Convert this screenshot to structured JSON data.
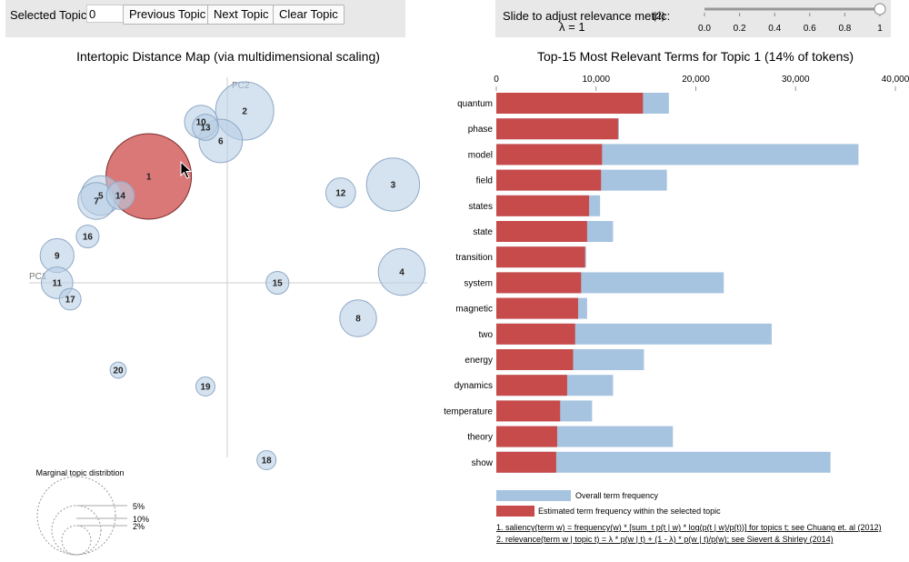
{
  "controls": {
    "selected_topic_label": "Selected Topic:",
    "selected_topic_value": "0",
    "prev_label": "Previous Topic",
    "next_label": "Next Topic",
    "clear_label": "Clear Topic",
    "slider_label": "Slide to adjust relevance metric:",
    "slider_footnote": "(2)",
    "lambda_text": "λ = 1",
    "slider_ticks": [
      "0.0",
      "0.2",
      "0.4",
      "0.6",
      "0.8",
      "1"
    ],
    "lambda_value": 1
  },
  "colors": {
    "overall": "#a6c4e0",
    "estimated": "#c84b4b",
    "circle_fill": "#b9cee4",
    "selected_fill": "#d45f5f"
  },
  "chart_data": [
    {
      "type": "scatter",
      "title": "Intertopic Distance Map (via multidimensional scaling)",
      "xlabel": "PC1",
      "ylabel": "PC2",
      "selected_topic": 1,
      "points": [
        {
          "topic": "1",
          "x": -0.36,
          "y": 0.39,
          "size": 14
        },
        {
          "topic": "2",
          "x": 0.08,
          "y": 0.63,
          "size": 6.5
        },
        {
          "topic": "3",
          "x": 0.76,
          "y": 0.36,
          "size": 5.4
        },
        {
          "topic": "4",
          "x": 0.8,
          "y": 0.04,
          "size": 4.2
        },
        {
          "topic": "5",
          "x": -0.58,
          "y": 0.32,
          "size": 3.0
        },
        {
          "topic": "6",
          "x": -0.03,
          "y": 0.52,
          "size": 3.6
        },
        {
          "topic": "7",
          "x": -0.6,
          "y": 0.3,
          "size": 2.6
        },
        {
          "topic": "8",
          "x": 0.6,
          "y": -0.13,
          "size": 2.6
        },
        {
          "topic": "9",
          "x": -0.78,
          "y": 0.1,
          "size": 2.2
        },
        {
          "topic": "10",
          "x": -0.12,
          "y": 0.59,
          "size": 2.1
        },
        {
          "topic": "11",
          "x": -0.78,
          "y": 0.0,
          "size": 1.9
        },
        {
          "topic": "13",
          "x": -0.1,
          "y": 0.57,
          "size": 1.3
        },
        {
          "topic": "12",
          "x": 0.52,
          "y": 0.33,
          "size": 1.7
        },
        {
          "topic": "14",
          "x": -0.49,
          "y": 0.32,
          "size": 1.5
        },
        {
          "topic": "15",
          "x": 0.23,
          "y": 0.0,
          "size": 1.0
        },
        {
          "topic": "16",
          "x": -0.64,
          "y": 0.17,
          "size": 1.0
        },
        {
          "topic": "17",
          "x": -0.72,
          "y": -0.06,
          "size": 0.9
        },
        {
          "topic": "18",
          "x": 0.18,
          "y": -0.65,
          "size": 0.7
        },
        {
          "topic": "19",
          "x": -0.1,
          "y": -0.38,
          "size": 0.7
        },
        {
          "topic": "20",
          "x": -0.5,
          "y": -0.32,
          "size": 0.5
        }
      ],
      "legend_title": "Marginal topic distribtion",
      "legend_sizes": [
        "2%",
        "5%",
        "10%"
      ]
    },
    {
      "type": "bar",
      "title": "Top-15 Most Relevant Terms for Topic 1 (14% of tokens)",
      "x_ticks": [
        "0",
        "10,000",
        "20,000",
        "30,000",
        "40,000"
      ],
      "xlim": [
        0,
        40000
      ],
      "categories": [
        "quantum",
        "phase",
        "model",
        "field",
        "states",
        "state",
        "transition",
        "system",
        "magnetic",
        "two",
        "energy",
        "dynamics",
        "temperature",
        "theory",
        "show"
      ],
      "series": [
        {
          "name": "Overall term frequency",
          "values": [
            17300,
            12300,
            36300,
            17100,
            10400,
            11700,
            9000,
            22800,
            9100,
            27600,
            14800,
            11700,
            9600,
            17700,
            33500
          ]
        },
        {
          "name": "Estimated term frequency within the selected topic",
          "values": [
            14700,
            12200,
            10600,
            10500,
            9300,
            9100,
            8900,
            8500,
            8200,
            7900,
            7700,
            7100,
            6400,
            6100,
            6000
          ]
        }
      ],
      "footnotes": [
        "1. saliency(term w) = frequency(w) * [sum_t p(t | w) * log(p(t | w)/p(t))] for topics t; see Chuang et. al (2012)",
        "2. relevance(term w | topic t) = λ * p(w | t) + (1 - λ) * p(w | t)/p(w); see Sievert & Shirley (2014)"
      ]
    }
  ]
}
